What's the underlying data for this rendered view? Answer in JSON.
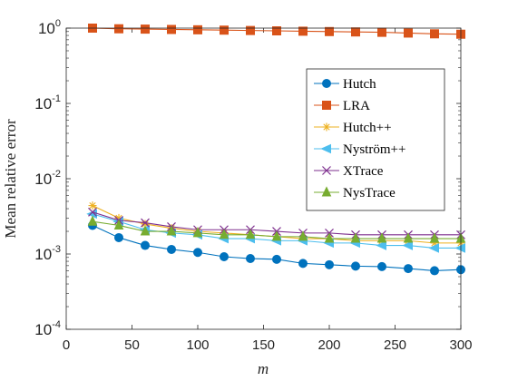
{
  "chart_data": {
    "type": "line",
    "xlabel": "m",
    "ylabel": "Mean relative error",
    "xlim": [
      0,
      300
    ],
    "ylim": [
      0.0001,
      1
    ],
    "yscale": "log",
    "xticks": [
      0,
      50,
      100,
      150,
      200,
      250,
      300
    ],
    "xtick_labels": [
      "0",
      "50",
      "100",
      "150",
      "200",
      "250",
      "300"
    ],
    "yticks": [
      0.0001,
      0.001,
      0.01,
      0.1,
      1
    ],
    "ytick_labels": [
      {
        "base": "10",
        "exp": "-4"
      },
      {
        "base": "10",
        "exp": "-3"
      },
      {
        "base": "10",
        "exp": "-2"
      },
      {
        "base": "10",
        "exp": "-1"
      },
      {
        "base": "10",
        "exp": "0"
      }
    ],
    "grid": false,
    "legend_position": "upper-right",
    "x": [
      20,
      40,
      60,
      80,
      100,
      120,
      140,
      160,
      180,
      200,
      220,
      240,
      260,
      280,
      300
    ],
    "series": [
      {
        "name": "Hutch",
        "color": "#0072BD",
        "marker": "circle",
        "values": [
          0.0024,
          0.00165,
          0.0013,
          0.00115,
          0.00105,
          0.00092,
          0.00087,
          0.00085,
          0.00075,
          0.00072,
          0.00069,
          0.00068,
          0.00064,
          0.0006,
          0.00062
        ]
      },
      {
        "name": "LRA",
        "color": "#D95319",
        "marker": "square",
        "values": [
          1.0,
          0.98,
          0.97,
          0.96,
          0.95,
          0.94,
          0.93,
          0.92,
          0.91,
          0.9,
          0.89,
          0.88,
          0.86,
          0.84,
          0.83
        ]
      },
      {
        "name": "Hutch++",
        "color": "#EDB120",
        "marker": "asterisk",
        "values": [
          0.0044,
          0.003,
          0.0025,
          0.0022,
          0.002,
          0.0019,
          0.0018,
          0.0017,
          0.0016,
          0.0016,
          0.0015,
          0.0015,
          0.0015,
          0.0014,
          0.0014
        ]
      },
      {
        "name": "Nyström++",
        "color": "#4DBEEE",
        "marker": "triangle-left",
        "values": [
          0.0034,
          0.0027,
          0.0021,
          0.0019,
          0.0018,
          0.0016,
          0.0016,
          0.0015,
          0.0015,
          0.0014,
          0.0014,
          0.0013,
          0.0013,
          0.0012,
          0.0012
        ]
      },
      {
        "name": "XTrace",
        "color": "#7E2F8E",
        "marker": "x",
        "values": [
          0.0036,
          0.0028,
          0.0026,
          0.0023,
          0.0021,
          0.0021,
          0.0021,
          0.002,
          0.0019,
          0.0019,
          0.0018,
          0.0018,
          0.0018,
          0.0018,
          0.0018
        ]
      },
      {
        "name": "NysTrace",
        "color": "#77AC30",
        "marker": "triangle-up",
        "values": [
          0.0027,
          0.0024,
          0.002,
          0.002,
          0.0019,
          0.0018,
          0.0018,
          0.0017,
          0.0017,
          0.0016,
          0.0016,
          0.0016,
          0.0016,
          0.0016,
          0.0016
        ]
      }
    ]
  }
}
